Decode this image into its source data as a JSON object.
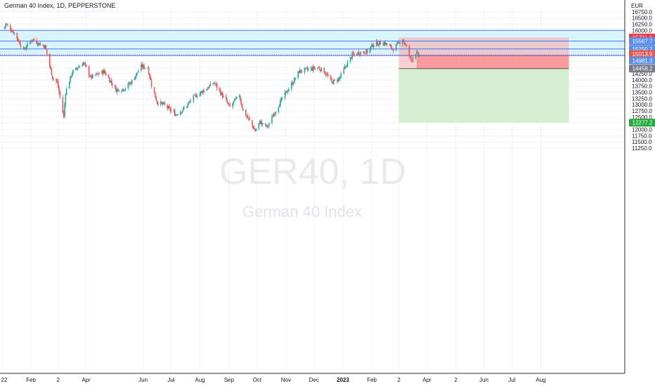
{
  "header": {
    "title": "German 40 Index, 1D, PEPPERSTONE",
    "currency": "EUR"
  },
  "watermark": {
    "symbol": "GER40, 1D",
    "name": "German 40 Index"
  },
  "colors": {
    "up": "#26a69a",
    "down": "#ef5350",
    "zone_fill": "#d2f2fa",
    "level_line": "#2962ff",
    "stop_fill": "#f6a8a8",
    "target_fill": "#cfeccb",
    "stop_badge": "#f23645",
    "target_badge": "#22ab3d",
    "entry_badge": "#787b86",
    "level_badge": "#5b8dee"
  },
  "chart_data": {
    "type": "candlestick",
    "title": "German 40 Index, 1D, PEPPERSTONE",
    "y_axis": {
      "unit": "EUR",
      "ylim": [
        11000,
        17000
      ],
      "ticks": [
        11250,
        11500,
        11750,
        12000,
        12250,
        12500,
        12750,
        13000,
        13250,
        13500,
        13750,
        14000,
        14250,
        14500,
        14750,
        15000,
        15250,
        15500,
        15750,
        16000,
        16250,
        16500,
        16750
      ]
    },
    "x_axis": {
      "ticks": [
        {
          "label": "22",
          "date": "2022-01-01"
        },
        {
          "label": "Feb",
          "date": "2022-02-01"
        },
        {
          "label": "2",
          "date": "2022-03-02"
        },
        {
          "label": "Apr",
          "date": "2022-04-01"
        },
        {
          "label": "Jun",
          "date": "2022-06-01"
        },
        {
          "label": "Jul",
          "date": "2022-07-01"
        },
        {
          "label": "Aug",
          "date": "2022-08-01"
        },
        {
          "label": "Sep",
          "date": "2022-09-01"
        },
        {
          "label": "Oct",
          "date": "2022-10-01"
        },
        {
          "label": "Nov",
          "date": "2022-11-01"
        },
        {
          "label": "Dec",
          "date": "2022-12-01"
        },
        {
          "label": "2023",
          "date": "2023-01-01",
          "bold": true
        },
        {
          "label": "Feb",
          "date": "2023-02-01"
        },
        {
          "label": "2",
          "date": "2023-03-02"
        },
        {
          "label": "Apr",
          "date": "2023-04-01"
        },
        {
          "label": "2",
          "date": "2023-05-02"
        },
        {
          "label": "Jun",
          "date": "2023-06-01"
        },
        {
          "label": "Jul",
          "date": "2023-07-01"
        },
        {
          "label": "Aug",
          "date": "2023-08-01"
        }
      ]
    },
    "price_path": [
      [
        "2022-01-03",
        16100
      ],
      [
        "2022-01-05",
        16250
      ],
      [
        "2022-01-14",
        15900
      ],
      [
        "2022-01-24",
        15200
      ],
      [
        "2022-02-02",
        15650
      ],
      [
        "2022-02-10",
        15450
      ],
      [
        "2022-02-16",
        15350
      ],
      [
        "2022-02-24",
        14100
      ],
      [
        "2022-03-01",
        13900
      ],
      [
        "2022-03-08",
        12500
      ],
      [
        "2022-03-10",
        13500
      ],
      [
        "2022-03-17",
        14300
      ],
      [
        "2022-03-29",
        14700
      ],
      [
        "2022-04-06",
        14100
      ],
      [
        "2022-04-20",
        14350
      ],
      [
        "2022-05-03",
        13600
      ],
      [
        "2022-05-12",
        13650
      ],
      [
        "2022-05-20",
        13950
      ],
      [
        "2022-05-30",
        14550
      ],
      [
        "2022-06-06",
        14500
      ],
      [
        "2022-06-10",
        13800
      ],
      [
        "2022-06-16",
        13100
      ],
      [
        "2022-06-23",
        13000
      ],
      [
        "2022-07-06",
        12600
      ],
      [
        "2022-07-15",
        12850
      ],
      [
        "2022-07-25",
        13300
      ],
      [
        "2022-08-08",
        13650
      ],
      [
        "2022-08-16",
        13900
      ],
      [
        "2022-08-26",
        13300
      ],
      [
        "2022-09-02",
        12900
      ],
      [
        "2022-09-12",
        13400
      ],
      [
        "2022-09-16",
        12750
      ],
      [
        "2022-09-23",
        12350
      ],
      [
        "2022-09-29",
        11950
      ],
      [
        "2022-10-04",
        12300
      ],
      [
        "2022-10-12",
        12100
      ],
      [
        "2022-10-20",
        12700
      ],
      [
        "2022-10-28",
        13250
      ],
      [
        "2022-11-10",
        14000
      ],
      [
        "2022-11-15",
        14350
      ],
      [
        "2022-11-29",
        14450
      ],
      [
        "2022-12-05",
        14500
      ],
      [
        "2022-12-12",
        14350
      ],
      [
        "2022-12-20",
        13900
      ],
      [
        "2022-12-28",
        14050
      ],
      [
        "2023-01-04",
        14550
      ],
      [
        "2023-01-11",
        15000
      ],
      [
        "2023-01-18",
        15100
      ],
      [
        "2023-01-27",
        15150
      ],
      [
        "2023-02-03",
        15450
      ],
      [
        "2023-02-14",
        15500
      ],
      [
        "2023-02-24",
        15250
      ],
      [
        "2023-03-06",
        15650
      ],
      [
        "2023-03-10",
        15300
      ],
      [
        "2023-03-15",
        14800
      ],
      [
        "2023-03-20",
        15100
      ],
      [
        "2023-03-24",
        14950
      ]
    ],
    "levels": [
      16000,
      15567.7,
      15250.2,
      14981.3
    ],
    "zone": {
      "top": 16000,
      "bottom": 14981.3
    },
    "position": {
      "start": "2023-03-02",
      "end": "2023-08-31",
      "entry": 14458.2,
      "stop": 15711.1,
      "target": 12277.2,
      "current": 15013.9
    },
    "badges": [
      {
        "value": 15711.1,
        "text": "15711.1",
        "kind": "stop"
      },
      {
        "value": 15567.7,
        "text": "15567.7",
        "kind": "level"
      },
      {
        "value": 15250.2,
        "text": "15250.2",
        "kind": "level"
      },
      {
        "value": 15013.9,
        "text": "15013.9",
        "kind": "price"
      },
      {
        "value": 14981.3,
        "text": "14981.3",
        "kind": "level"
      },
      {
        "value": 14458.2,
        "text": "14458.2",
        "kind": "entry"
      },
      {
        "value": 12277.2,
        "text": "12277.2",
        "kind": "target"
      }
    ]
  }
}
